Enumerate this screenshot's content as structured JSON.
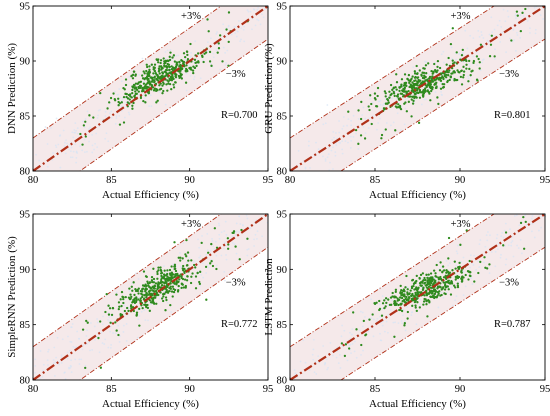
{
  "colors": {
    "point": "#2f8a1e",
    "line": "#b03018",
    "band": "#f5e9ea",
    "scatter_blue": "#d6e4f5",
    "axis": "#000000"
  },
  "chart_data": [
    {
      "type": "scatter",
      "panel": "DNN",
      "xlabel": "Actual Efficiency (%)",
      "ylabel": "DNN Prediction (%)",
      "xlim": [
        80,
        95
      ],
      "ylim": [
        80,
        95
      ],
      "xticks": [
        "80",
        "85",
        "90",
        "95"
      ],
      "yticks": [
        "80",
        "85",
        "90",
        "95"
      ],
      "plus_label": "+3%",
      "minus_label": "−3%",
      "r_label": "R=0.700",
      "band_percent": 3,
      "center": [
        88.0,
        88.5
      ],
      "spread": [
        1.3,
        1.1
      ]
    },
    {
      "type": "scatter",
      "panel": "GRU",
      "xlabel": "Actual Efficiency (%)",
      "ylabel": "GRU Prediction (%)",
      "xlim": [
        80,
        95
      ],
      "ylim": [
        80,
        95
      ],
      "xticks": [
        "80",
        "85",
        "90",
        "95"
      ],
      "yticks": [
        "80",
        "85",
        "90",
        "95"
      ],
      "plus_label": "+3%",
      "minus_label": "−3%",
      "r_label": "R=0.801",
      "band_percent": 3,
      "center": [
        88.0,
        88.0
      ],
      "spread": [
        1.3,
        1.0
      ]
    },
    {
      "type": "scatter",
      "panel": "SimpleRNN",
      "xlabel": "Actual Efficiency (%)",
      "ylabel": "SimpleRNN Prediction (%)",
      "xlim": [
        80,
        95
      ],
      "ylim": [
        80,
        95
      ],
      "xticks": [
        "80",
        "85",
        "90",
        "95"
      ],
      "yticks": [
        "80",
        "85",
        "90",
        "95"
      ],
      "plus_label": "+3%",
      "minus_label": "−3%",
      "r_label": "R=0.772",
      "band_percent": 3,
      "center": [
        88.0,
        88.4
      ],
      "spread": [
        1.3,
        1.05
      ]
    },
    {
      "type": "scatter",
      "panel": "LSTM",
      "xlabel": "Actual Efficiency (%)",
      "ylabel": "LSTM Prediction",
      "xlim": [
        80,
        95
      ],
      "ylim": [
        80,
        95
      ],
      "xticks": [
        "80",
        "85",
        "90",
        "95"
      ],
      "yticks": [
        "80",
        "85",
        "90",
        "95"
      ],
      "plus_label": "+3%",
      "minus_label": "−3%",
      "r_label": "R=0.787",
      "band_percent": 3,
      "center": [
        88.0,
        88.2
      ],
      "spread": [
        1.3,
        1.0
      ]
    }
  ]
}
